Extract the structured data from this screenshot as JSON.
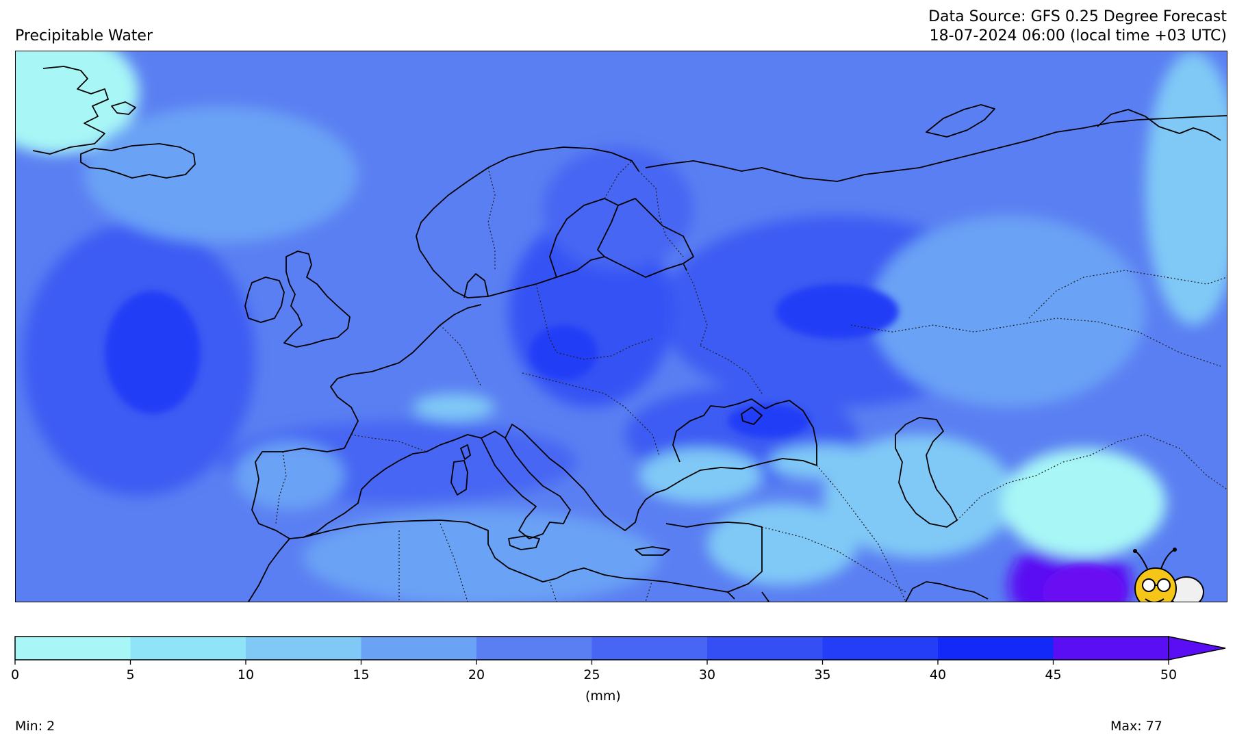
{
  "header": {
    "title": "Precipitable Water",
    "source": "Data Source: GFS 0.25 Degree Forecast",
    "datetime": "18-07-2024 06:00 (local time +03 UTC)"
  },
  "colorbar": {
    "unit_label": "(mm)",
    "ticks": [
      "0",
      "5",
      "10",
      "15",
      "20",
      "25",
      "30",
      "35",
      "40",
      "45",
      "50"
    ],
    "bins": [
      {
        "from": 0,
        "to": 5,
        "color": "#a8f7f6"
      },
      {
        "from": 5,
        "to": 10,
        "color": "#8fe4f7"
      },
      {
        "from": 10,
        "to": 15,
        "color": "#80c9f6"
      },
      {
        "from": 15,
        "to": 20,
        "color": "#6aa2f5"
      },
      {
        "from": 20,
        "to": 25,
        "color": "#5a7ff2"
      },
      {
        "from": 25,
        "to": 30,
        "color": "#4766f3"
      },
      {
        "from": 30,
        "to": 35,
        "color": "#3450f5"
      },
      {
        "from": 35,
        "to": 40,
        "color": "#233ef6"
      },
      {
        "from": 40,
        "to": 45,
        "color": "#1329f7"
      },
      {
        "from": 45,
        "to": 50,
        "color": "#5a0ef3"
      }
    ],
    "extend_color": "#5a0ef3"
  },
  "stats": {
    "min_label": "Min: 2",
    "max_label": "Max: 77"
  },
  "mascot": {
    "icon": "bee-mascot-icon"
  }
}
